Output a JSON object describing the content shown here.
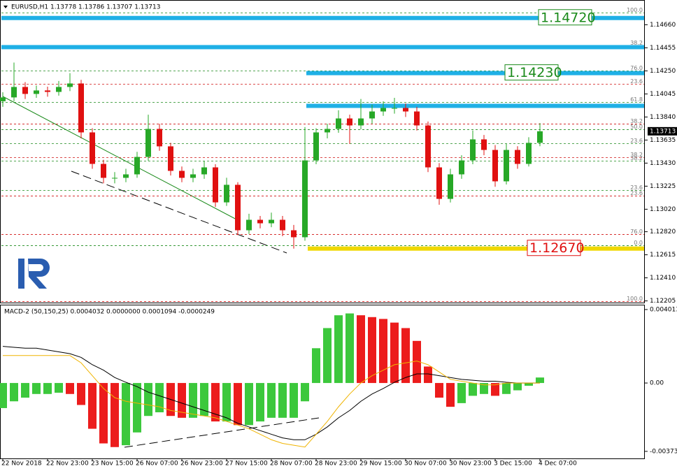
{
  "chart_data": [
    {
      "type": "candlestick",
      "header": "EURUSD,H1  1.13778 1.13786 1.13707 1.13713",
      "up_color": "#27a827",
      "down_color": "#e01010",
      "x": [
        0,
        4,
        8,
        12,
        16,
        20,
        24,
        28,
        32,
        36,
        40,
        44,
        48,
        52,
        56,
        60,
        64,
        68,
        72,
        76,
        80,
        84,
        88,
        92,
        96,
        100,
        104,
        108,
        112,
        116,
        120,
        124,
        128,
        132,
        136,
        140,
        144,
        148,
        152,
        156,
        160,
        164,
        168,
        172,
        176,
        180,
        184,
        188,
        192
      ],
      "open": [
        1.1398,
        1.14014,
        1.14107,
        1.14045,
        1.14076,
        1.14063,
        1.14107,
        1.14138,
        1.13703,
        1.13423,
        1.13299,
        1.13299,
        1.1333,
        1.13485,
        1.13734,
        1.13579,
        1.13361,
        1.13299,
        1.1333,
        1.13392,
        1.13081,
        1.13237,
        1.12833,
        1.12926,
        1.12895,
        1.12926,
        1.12833,
        1.12771,
        1.13454,
        1.13703,
        1.13734,
        1.13827,
        1.13765,
        1.13827,
        1.13889,
        1.1392,
        1.1392,
        1.13889,
        1.13765,
        1.13392,
        1.13112,
        1.1333,
        1.13454,
        1.13641,
        1.13547,
        1.13268,
        1.13547,
        1.13423,
        1.1361
      ],
      "high": [
        1.1406,
        1.14324,
        1.1415,
        1.1412,
        1.1411,
        1.1416,
        1.1423,
        1.1417,
        1.1374,
        1.1346,
        1.1335,
        1.1338,
        1.1353,
        1.1386,
        1.1378,
        1.1361,
        1.134,
        1.1338,
        1.1345,
        1.1342,
        1.133,
        1.1326,
        1.1298,
        1.1296,
        1.1299,
        1.1296,
        1.1288,
        1.1375,
        1.1374,
        1.1378,
        1.139,
        1.1386,
        1.14,
        1.1395,
        1.1398,
        1.1401,
        1.1396,
        1.1393,
        1.138,
        1.1343,
        1.1338,
        1.135,
        1.1372,
        1.1368,
        1.1359,
        1.136,
        1.1358,
        1.1366,
        1.13786
      ],
      "low": [
        1.1393,
        1.1398,
        1.14,
        1.1401,
        1.1402,
        1.1403,
        1.1407,
        1.1365,
        1.1338,
        1.1325,
        1.1325,
        1.1326,
        1.133,
        1.1345,
        1.1354,
        1.1332,
        1.1326,
        1.1326,
        1.1329,
        1.1304,
        1.1305,
        1.1279,
        1.128,
        1.1285,
        1.1286,
        1.1278,
        1.1267,
        1.1274,
        1.1342,
        1.1365,
        1.137,
        1.136,
        1.1373,
        1.1378,
        1.1385,
        1.1387,
        1.1384,
        1.1372,
        1.1335,
        1.1306,
        1.1308,
        1.1329,
        1.1342,
        1.135,
        1.1322,
        1.1324,
        1.1338,
        1.134,
        1.1358
      ],
      "close": [
        1.14014,
        1.14107,
        1.14045,
        1.14076,
        1.14063,
        1.14107,
        1.14138,
        1.13703,
        1.13423,
        1.13299,
        1.13299,
        1.1333,
        1.13485,
        1.13734,
        1.13579,
        1.13361,
        1.13299,
        1.1333,
        1.13392,
        1.13081,
        1.13237,
        1.12833,
        1.12926,
        1.12895,
        1.12926,
        1.12833,
        1.12771,
        1.13454,
        1.13703,
        1.13734,
        1.13827,
        1.13765,
        1.13827,
        1.13889,
        1.1392,
        1.1392,
        1.13889,
        1.13765,
        1.13392,
        1.13112,
        1.1333,
        1.13454,
        1.13641,
        1.13547,
        1.13268,
        1.13547,
        1.13423,
        1.1361,
        1.13713
      ],
      "current_price": 1.13713,
      "xlim": [
        -1,
        229.5
      ],
      "ylim": [
        1.1219,
        1.1488
      ],
      "yticks": [
        {
          "value": 1.1466,
          "label": "1.14660"
        },
        {
          "value": 1.14455,
          "label": "1.14455"
        },
        {
          "value": 1.1425,
          "label": "1.14250"
        },
        {
          "value": 1.14045,
          "label": "1.14045"
        },
        {
          "value": 1.1384,
          "label": "1.13840"
        },
        {
          "value": 1.13635,
          "label": "1.13635"
        },
        {
          "value": 1.1343,
          "label": "1.13430"
        },
        {
          "value": 1.13225,
          "label": "1.13225"
        },
        {
          "value": 1.1302,
          "label": "1.13020"
        },
        {
          "value": 1.1282,
          "label": "1.12820"
        },
        {
          "value": 1.12615,
          "label": "1.12615"
        },
        {
          "value": 1.1241,
          "label": "1.12410"
        },
        {
          "value": 1.12205,
          "label": "1.12205"
        }
      ],
      "levels": [
        {
          "value": 1.1472,
          "label": "1.14720",
          "color": "#1fb0e6"
        },
        {
          "value": 1.14461,
          "color": "#1fb0e6"
        },
        {
          "value": 1.1423,
          "label": "1.14230",
          "color": "#1fb0e6"
        },
        {
          "value": 1.13939,
          "color": "#1fb0e6"
        },
        {
          "value": 1.1267,
          "label": "1.12670",
          "color": "#f0d800"
        }
      ],
      "fib_levels": [
        {
          "value": 1.14766,
          "label": "100.0",
          "color": "#1a8a1a"
        },
        {
          "value": 1.14474,
          "label": "38.2",
          "color": "#1a8a1a"
        },
        {
          "value": 1.1425,
          "label": "76.0",
          "color": "#1a8a1a"
        },
        {
          "value": 1.14132,
          "label": "23.6",
          "color": "#d01010"
        },
        {
          "value": 1.1397,
          "label": "61.8",
          "color": "#1a8a1a"
        },
        {
          "value": 1.13777,
          "label": "38.2",
          "color": "#d01010"
        },
        {
          "value": 1.13728,
          "label": "50.0",
          "color": "#1a8a1a"
        },
        {
          "value": 1.13604,
          "label": "23.6",
          "color": "#1a8a1a"
        },
        {
          "value": 1.13479,
          "label": "38.2",
          "color": "#d01010"
        },
        {
          "value": 1.13448,
          "label": "38.2",
          "color": "#1a8a1a"
        },
        {
          "value": 1.13187,
          "label": "23.6",
          "color": "#1a8a1a"
        },
        {
          "value": 1.13137,
          "label": "23.6",
          "color": "#d01010"
        },
        {
          "value": 1.12796,
          "label": "76.0",
          "color": "#d01010"
        },
        {
          "value": 1.12696,
          "label": "0.0",
          "color": "#1a8a1a"
        },
        {
          "value": 1.12199,
          "label": "100.0",
          "color": "#d01010"
        }
      ]
    },
    {
      "type": "macd",
      "title": "MACD-2 (50,150,25) 0.0004032 0.0000000 0.0001094 -0.0000249",
      "up_color": "#3cc83c",
      "down_color": "#ec1c1c",
      "values": [
        -0.00137,
        -0.001,
        -0.0008,
        -0.0006,
        -0.0006,
        -0.00053,
        -0.0006,
        -0.0012,
        -0.0025,
        -0.0033,
        -0.0035,
        -0.0034,
        -0.0027,
        -0.0018,
        -0.0016,
        -0.0018,
        -0.0019,
        -0.0019,
        -0.0018,
        -0.0021,
        -0.0021,
        -0.0023,
        -0.0023,
        -0.0021,
        -0.0019,
        -0.0019,
        -0.0019,
        -0.001,
        0.0019,
        0.003,
        0.0037,
        0.0038,
        0.0037,
        0.0036,
        0.0035,
        0.0033,
        0.003,
        0.0023,
        0.0009,
        -0.0008,
        -0.0013,
        -0.0011,
        -0.0007,
        -0.0006,
        -0.0007,
        -0.0006,
        -0.0004,
        -0.00015,
        0.0003
      ],
      "series": [
        {
          "color": "#000000",
          "values": [
            0.002,
            0.00195,
            0.0019,
            0.0019,
            0.0018,
            0.0017,
            0.0016,
            0.0014,
            0.001,
            0.0007,
            0.0003,
            4e-05,
            -0.0002,
            -0.0005,
            -0.0007,
            -0.0009,
            -0.0011,
            -0.0013,
            -0.0015,
            -0.0017,
            -0.0019,
            -0.0022,
            -0.0024,
            -0.0026,
            -0.0028,
            -0.003,
            -0.0031,
            -0.0031,
            -0.0028,
            -0.0024,
            -0.0019,
            -0.0015,
            -0.001,
            -0.0006,
            -0.0003,
            4e-05,
            0.0003,
            0.0005,
            0.0005,
            0.0004,
            0.0003,
            0.0002,
            0.00015,
            0.0001,
            0.0001,
            4e-05,
            0,
            0,
            0
          ]
        },
        {
          "color": "#f0b400",
          "values": [
            0.0015,
            0.0015,
            0.0015,
            0.0015,
            0.0015,
            0.0015,
            0.0015,
            0.0011,
            0.0004,
            -0.0003,
            -0.0008,
            -0.001,
            -0.0011,
            -0.0012,
            -0.0013,
            -0.0015,
            -0.0016,
            -0.0017,
            -0.0018,
            -0.0019,
            -0.0021,
            -0.0023,
            -0.0025,
            -0.0028,
            -0.0031,
            -0.0033,
            -0.0034,
            -0.0035,
            -0.0028,
            -0.0021,
            -0.0013,
            -0.0006,
            0,
            0.0004,
            0.0007,
            0.001,
            0.0011,
            0.0012,
            0.001,
            0.0006,
            0.0002,
            0.0001,
            0,
            -0.0001,
            -0.0001,
            0,
            0,
            0,
            0
          ]
        }
      ],
      "ylim": [
        -0.00412,
        0.00424
      ],
      "yticks": [
        0.004013,
        {
          "value": 0,
          "label": "0.00"
        },
        -0.003734
      ],
      "xticks": [
        {
          "value": 0,
          "label": "22 Nov 2018"
        },
        {
          "value": 16,
          "label": "22 Nov 23:00"
        },
        {
          "value": 32,
          "label": "23 Nov 15:00"
        },
        {
          "value": 48,
          "label": "26 Nov 07:00"
        },
        {
          "value": 64,
          "label": "26 Nov 23:00"
        },
        {
          "value": 80,
          "label": "27 Nov 15:00"
        },
        {
          "value": 96,
          "label": "28 Nov 07:00"
        },
        {
          "value": 112,
          "label": "28 Nov 23:00"
        },
        {
          "value": 128,
          "label": "29 Nov 15:00"
        },
        {
          "value": 144,
          "label": "30 Nov 07:00"
        },
        {
          "value": 160,
          "label": "30 Nov 23:00"
        },
        {
          "value": 176,
          "label": "3 Dec 15:00"
        },
        {
          "value": 192,
          "label": "4 Dec 07:00"
        }
      ]
    }
  ]
}
